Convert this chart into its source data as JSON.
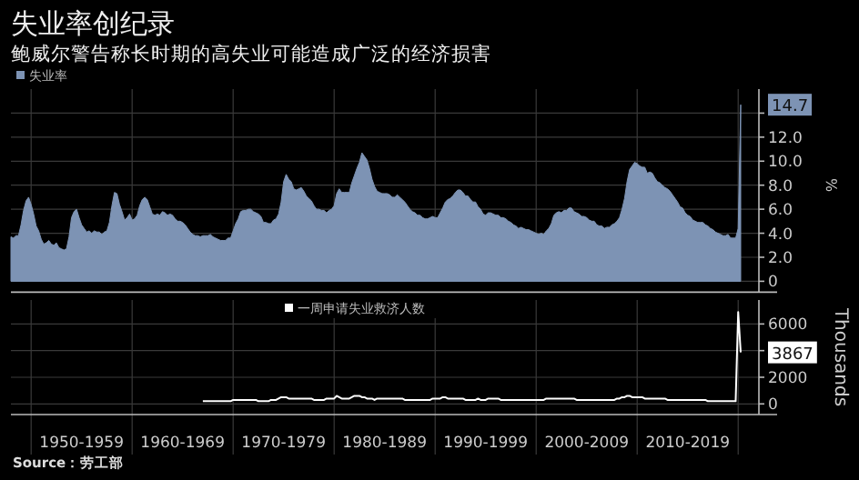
{
  "chart_data": [
    {
      "type": "area",
      "title": "失业率创纪录",
      "subtitle": "鲍威尔警告称长时期的高失业可能造成广泛的经济损害",
      "ylabel": "%",
      "legend": "top left",
      "grid": true,
      "tick_labels": "y",
      "ylim": [
        0,
        16
      ],
      "categories": [
        null,
        null,
        null,
        null,
        null,
        null,
        null,
        null,
        null,
        null,
        null,
        null,
        null,
        null,
        null,
        null,
        null,
        null,
        null,
        null,
        null,
        null,
        null,
        null,
        null,
        null,
        null,
        null,
        null,
        null,
        null,
        null,
        null,
        null,
        null,
        null,
        null,
        null,
        null,
        null,
        null,
        null,
        null,
        null,
        null,
        null,
        null,
        null,
        null,
        null,
        null,
        null,
        null,
        null,
        null,
        null,
        null,
        null,
        null,
        null,
        null,
        null,
        null,
        null,
        null,
        null,
        null,
        null,
        null,
        null,
        null,
        null,
        null,
        null,
        null,
        null,
        null,
        null,
        null,
        null,
        null,
        null,
        null,
        null,
        null,
        null,
        null,
        null,
        null,
        null,
        null,
        null,
        null,
        null,
        null,
        null,
        null,
        null,
        null,
        null,
        null,
        null,
        null,
        null,
        null,
        null,
        null,
        null,
        null,
        null,
        null,
        null,
        null,
        null,
        null,
        null,
        null,
        null,
        null,
        null,
        null,
        null,
        null,
        null,
        null,
        null,
        null,
        null,
        null,
        null,
        null,
        null,
        null,
        null,
        null,
        null,
        null,
        null,
        null,
        null,
        null,
        null,
        null,
        null,
        null,
        null,
        null,
        null,
        null,
        null,
        null,
        null,
        null,
        null,
        null,
        null,
        null,
        null,
        null,
        null,
        null,
        null,
        null,
        null,
        null,
        null,
        null,
        null,
        null,
        null,
        null,
        null,
        null,
        null,
        null,
        null,
        null,
        null,
        null,
        null,
        null,
        null,
        null,
        null,
        null,
        null,
        null,
        null,
        null,
        null,
        null,
        null,
        null,
        null,
        null,
        null,
        null,
        null,
        null,
        null,
        null,
        null,
        null,
        null,
        null,
        null,
        null,
        null,
        null,
        null,
        null,
        null,
        null,
        null,
        null,
        null,
        null,
        null,
        null,
        null,
        null,
        null,
        null,
        null,
        null,
        null,
        null,
        null,
        null,
        null,
        null,
        null,
        null,
        null,
        null,
        null,
        null,
        null,
        null,
        null,
        null,
        null,
        null,
        null,
        null,
        null,
        null,
        null,
        null,
        null,
        null,
        null,
        null,
        null,
        null,
        null,
        null,
        null,
        null,
        null,
        null,
        null,
        null,
        null,
        null,
        null,
        null,
        null,
        null,
        null,
        null,
        null,
        null,
        null,
        null,
        null,
        null,
        null,
        null,
        null,
        null,
        null,
        null,
        null,
        null,
        null,
        null,
        null,
        null,
        null
      ],
      "yticks": [
        0,
        {
          "value": 2,
          "label": "2.0"
        },
        {
          "value": 4,
          "label": "4.0"
        },
        {
          "value": 6,
          "label": "6.0"
        },
        {
          "value": 8,
          "label": "8.0"
        },
        {
          "value": 10,
          "label": "10.0"
        },
        {
          "value": 12,
          "label": "12.0"
        },
        {
          "value": 14,
          "label": null
        }
      ],
      "series": [
        {
          "name": "失业率",
          "color": "#7d93b4",
          "values": [
            3.7,
            3.6,
            3.8,
            3.8,
            4.7,
            5.9,
            6.7,
            7.0,
            6.4,
            5.6,
            4.6,
            4.2,
            3.5,
            3.1,
            3.2,
            3.4,
            3.1,
            3.0,
            3.2,
            2.8,
            2.7,
            2.6,
            2.7,
            3.7,
            5.3,
            5.8,
            6.0,
            5.3,
            4.7,
            4.4,
            4.1,
            4.2,
            4.0,
            4.2,
            4.1,
            4.1,
            3.9,
            4.1,
            4.2,
            4.9,
            6.3,
            7.4,
            7.3,
            6.4,
            5.8,
            5.1,
            5.3,
            5.6,
            5.1,
            5.2,
            5.5,
            6.3,
            6.8,
            7.0,
            6.8,
            6.2,
            5.6,
            5.5,
            5.6,
            5.5,
            5.8,
            5.7,
            5.5,
            5.6,
            5.5,
            5.2,
            5.0,
            5.0,
            4.9,
            4.7,
            4.4,
            4.1,
            3.9,
            3.8,
            3.8,
            3.7,
            3.8,
            3.8,
            3.8,
            3.9,
            3.7,
            3.6,
            3.5,
            3.4,
            3.4,
            3.4,
            3.6,
            3.6,
            4.2,
            4.8,
            5.2,
            5.8,
            5.9,
            5.9,
            6.0,
            6.0,
            5.8,
            5.7,
            5.6,
            5.4,
            4.9,
            4.9,
            4.8,
            4.8,
            5.1,
            5.2,
            5.6,
            6.6,
            8.3,
            8.9,
            8.5,
            8.3,
            7.7,
            7.6,
            7.7,
            7.8,
            7.5,
            7.1,
            6.9,
            6.7,
            6.3,
            6.0,
            6.0,
            5.9,
            5.9,
            5.7,
            5.9,
            6.0,
            6.3,
            7.3,
            7.7,
            7.4,
            7.4,
            7.4,
            7.4,
            8.2,
            8.8,
            9.4,
            9.9,
            10.7,
            10.4,
            10.1,
            9.4,
            8.5,
            7.9,
            7.5,
            7.4,
            7.3,
            7.3,
            7.3,
            7.2,
            7.0,
            7.0,
            7.2,
            7.0,
            6.8,
            6.6,
            6.3,
            6.0,
            5.8,
            5.7,
            5.5,
            5.5,
            5.3,
            5.2,
            5.2,
            5.3,
            5.4,
            5.3,
            5.3,
            5.7,
            6.1,
            6.6,
            6.8,
            6.9,
            7.1,
            7.4,
            7.6,
            7.6,
            7.4,
            7.1,
            7.1,
            6.8,
            6.6,
            6.6,
            6.2,
            6.0,
            5.6,
            5.5,
            5.7,
            5.7,
            5.6,
            5.5,
            5.5,
            5.3,
            5.3,
            5.2,
            5.0,
            4.9,
            4.7,
            4.6,
            4.4,
            4.5,
            4.4,
            4.3,
            4.3,
            4.2,
            4.1,
            4.0,
            3.9,
            4.0,
            3.9,
            4.2,
            4.4,
            4.8,
            5.5,
            5.7,
            5.8,
            5.7,
            5.9,
            5.9,
            6.1,
            6.1,
            5.8,
            5.7,
            5.6,
            5.4,
            5.4,
            5.3,
            5.1,
            5.0,
            5.0,
            4.7,
            4.6,
            4.6,
            4.4,
            4.5,
            4.5,
            4.7,
            4.8,
            5.0,
            5.3,
            6.0,
            6.9,
            8.3,
            9.3,
            9.6,
            9.9,
            9.8,
            9.6,
            9.5,
            9.5,
            9.0,
            9.1,
            9.0,
            8.6,
            8.3,
            8.2,
            8.0,
            7.8,
            7.7,
            7.5,
            7.2,
            6.9,
            6.6,
            6.2,
            6.1,
            5.7,
            5.5,
            5.4,
            5.1,
            5.0,
            4.9,
            4.9,
            4.9,
            4.7,
            4.6,
            4.4,
            4.3,
            4.1,
            4.0,
            3.9,
            3.8,
            3.8,
            3.9,
            3.6,
            3.6,
            3.6,
            4.4,
            14.7
          ],
          "value_labels": [
            null,
            null,
            null,
            null,
            null,
            null,
            null,
            null,
            null,
            null,
            null,
            null,
            null,
            null,
            null,
            null,
            null,
            null,
            null,
            null,
            null,
            null,
            null,
            null,
            null,
            null,
            null,
            null,
            null,
            null,
            null,
            null,
            null,
            null,
            null,
            null,
            null,
            null,
            null,
            null,
            null,
            null,
            null,
            null,
            null,
            null,
            null,
            null,
            null,
            null,
            null,
            null,
            null,
            null,
            null,
            null,
            null,
            null,
            null,
            null,
            null,
            null,
            null,
            null,
            null,
            null,
            null,
            null,
            null,
            null,
            null,
            null,
            null,
            null,
            null,
            null,
            null,
            null,
            null,
            null,
            null,
            null,
            null,
            null,
            null,
            null,
            null,
            null,
            null,
            null,
            null,
            null,
            null,
            null,
            null,
            null,
            null,
            null,
            null,
            null,
            null,
            null,
            null,
            null,
            null,
            null,
            null,
            null,
            null,
            null,
            null,
            null,
            null,
            null,
            null,
            null,
            null,
            null,
            null,
            null,
            null,
            null,
            null,
            null,
            null,
            null,
            null,
            null,
            null,
            null,
            null,
            null,
            null,
            null,
            null,
            null,
            null,
            null,
            null,
            null,
            null,
            null,
            null,
            null,
            null,
            null,
            null,
            null,
            null,
            null,
            null,
            null,
            null,
            null,
            null,
            null,
            null,
            null,
            null,
            null,
            null,
            null,
            null,
            null,
            null,
            null,
            null,
            null,
            null,
            null,
            null,
            null,
            null,
            null,
            null,
            null,
            null,
            null,
            null,
            null,
            null,
            null,
            null,
            null,
            null,
            null,
            null,
            null,
            null,
            null,
            null,
            null,
            null,
            null,
            null,
            null,
            null,
            null,
            null,
            null,
            null,
            null,
            null,
            null,
            null,
            null,
            null,
            null,
            null,
            null,
            null,
            null,
            null,
            null,
            null,
            null,
            null,
            null,
            null,
            null,
            null,
            null,
            null,
            null,
            null,
            null,
            null,
            null,
            null,
            null,
            null,
            null,
            null,
            null,
            null,
            null,
            null,
            null,
            null,
            null,
            null,
            null,
            null,
            null,
            null,
            null,
            null,
            null,
            null,
            null,
            null,
            null,
            null,
            null,
            null,
            null,
            null,
            null,
            null,
            null,
            null,
            null,
            null,
            null,
            null,
            null,
            null,
            null,
            null,
            null,
            null,
            null,
            null,
            null,
            null,
            null,
            null,
            null,
            null,
            null,
            null,
            null,
            null,
            null,
            null,
            null,
            null,
            null,
            null,
            "14.7"
          ]
        }
      ]
    },
    {
      "type": "line",
      "ylabel": "Thousands",
      "legend": "top",
      "grid": true,
      "ylim": [
        -800,
        7800
      ],
      "annotations": [
        "Source：劳工部"
      ],
      "categories": [
        null,
        null,
        null,
        null,
        null,
        null,
        null,
        null,
        null,
        null,
        null,
        null,
        null,
        null,
        null,
        null,
        null,
        null,
        null,
        null,
        null,
        null,
        null,
        null,
        null,
        null,
        null,
        null,
        "1950-1959",
        null,
        null,
        null,
        null,
        null,
        null,
        null,
        null,
        null,
        null,
        null,
        null,
        null,
        null,
        null,
        null,
        null,
        null,
        null,
        null,
        null,
        null,
        null,
        null,
        null,
        null,
        null,
        null,
        null,
        null,
        null,
        null,
        null,
        null,
        null,
        null,
        null,
        null,
        null,
        "1960-1969",
        null,
        null,
        null,
        null,
        null,
        null,
        null,
        null,
        null,
        null,
        null,
        null,
        null,
        null,
        null,
        null,
        null,
        null,
        null,
        null,
        null,
        null,
        null,
        null,
        null,
        null,
        null,
        null,
        null,
        null,
        null,
        null,
        null,
        null,
        null,
        null,
        null,
        null,
        null,
        "1970-1979",
        null,
        null,
        null,
        null,
        null,
        null,
        null,
        null,
        null,
        null,
        null,
        null,
        null,
        null,
        null,
        null,
        null,
        null,
        null,
        null,
        null,
        null,
        null,
        null,
        null,
        null,
        null,
        null,
        null,
        null,
        null,
        null,
        null,
        null,
        null,
        null,
        null,
        null,
        null,
        "1980-1989",
        null,
        null,
        null,
        null,
        null,
        null,
        null,
        null,
        null,
        null,
        null,
        null,
        null,
        null,
        null,
        null,
        null,
        null,
        null,
        null,
        null,
        null,
        null,
        null,
        null,
        null,
        null,
        null,
        null,
        null,
        null,
        null,
        null,
        null,
        null,
        null,
        null,
        null,
        null,
        "1990-1999",
        null,
        null,
        null,
        null,
        null,
        null,
        null,
        null,
        null,
        null,
        null,
        null,
        null,
        null,
        null,
        null,
        null,
        null,
        null,
        null,
        null,
        null,
        null,
        null,
        null,
        null,
        null,
        null,
        null,
        null,
        null,
        null,
        null,
        null,
        null,
        null,
        null,
        null,
        null,
        "2000-2009",
        null,
        null,
        null,
        null,
        null,
        null,
        null,
        null,
        null,
        null,
        null,
        null,
        null,
        null,
        null,
        null,
        null,
        null,
        null,
        null,
        null,
        null,
        null,
        null,
        null,
        null,
        null,
        null,
        null,
        null,
        null,
        null,
        null,
        null,
        null,
        null,
        null,
        null,
        null,
        "2010-2019",
        null,
        null,
        null,
        null,
        null,
        null,
        null,
        null,
        null,
        null,
        null,
        null,
        null,
        null,
        null,
        null,
        null,
        null,
        null,
        null,
        null
      ],
      "yticks": [
        0,
        2000,
        {
          "value": 4000,
          "label": null
        },
        6000
      ],
      "series": [
        {
          "name": "一周申请失业救济人数",
          "color": "#ffffff",
          "values": [
            null,
            null,
            null,
            null,
            null,
            null,
            null,
            null,
            null,
            null,
            null,
            null,
            null,
            null,
            null,
            null,
            null,
            null,
            null,
            null,
            null,
            null,
            null,
            null,
            null,
            null,
            null,
            null,
            null,
            null,
            null,
            null,
            null,
            null,
            null,
            null,
            null,
            null,
            null,
            null,
            null,
            null,
            null,
            null,
            null,
            null,
            null,
            null,
            null,
            null,
            null,
            null,
            null,
            null,
            null,
            null,
            null,
            null,
            null,
            null,
            null,
            null,
            null,
            null,
            null,
            null,
            null,
            null,
            null,
            null,
            null,
            null,
            null,
            null,
            null,
            null,
            200,
            200,
            200,
            200,
            200,
            200,
            200,
            200,
            200,
            200,
            200,
            200,
            300,
            300,
            300,
            300,
            300,
            300,
            300,
            300,
            300,
            300,
            200,
            200,
            200,
            200,
            200,
            300,
            300,
            300,
            400,
            500,
            500,
            500,
            400,
            400,
            400,
            400,
            400,
            400,
            400,
            400,
            400,
            400,
            300,
            300,
            300,
            300,
            300,
            400,
            400,
            400,
            400,
            600,
            500,
            400,
            400,
            400,
            400,
            500,
            600,
            600,
            600,
            500,
            500,
            400,
            400,
            400,
            300,
            400,
            400,
            400,
            400,
            400,
            400,
            400,
            400,
            400,
            400,
            400,
            300,
            300,
            300,
            300,
            300,
            300,
            300,
            300,
            300,
            300,
            300,
            400,
            400,
            400,
            400,
            500,
            500,
            400,
            400,
            400,
            400,
            400,
            400,
            400,
            300,
            300,
            300,
            300,
            300,
            400,
            300,
            300,
            300,
            400,
            400,
            400,
            400,
            400,
            300,
            300,
            300,
            300,
            300,
            300,
            300,
            300,
            300,
            300,
            300,
            300,
            300,
            300,
            300,
            300,
            300,
            300,
            400,
            400,
            400,
            400,
            400,
            400,
            400,
            400,
            400,
            400,
            400,
            400,
            300,
            300,
            300,
            300,
            300,
            300,
            300,
            300,
            300,
            300,
            300,
            300,
            300,
            300,
            300,
            300,
            400,
            400,
            500,
            500,
            600,
            600,
            500,
            500,
            500,
            500,
            500,
            400,
            400,
            400,
            400,
            400,
            400,
            400,
            400,
            400,
            300,
            300,
            300,
            300,
            300,
            300,
            300,
            300,
            300,
            300,
            300,
            300,
            300,
            300,
            300,
            300,
            200,
            200,
            200,
            200,
            200,
            200,
            200,
            200,
            200,
            200,
            200,
            200,
            6900,
            3867
          ],
          "value_labels": [
            null,
            null,
            null,
            null,
            null,
            null,
            null,
            null,
            null,
            null,
            null,
            null,
            null,
            null,
            null,
            null,
            null,
            null,
            null,
            null,
            null,
            null,
            null,
            null,
            null,
            null,
            null,
            null,
            null,
            null,
            null,
            null,
            null,
            null,
            null,
            null,
            null,
            null,
            null,
            null,
            null,
            null,
            null,
            null,
            null,
            null,
            null,
            null,
            null,
            null,
            null,
            null,
            null,
            null,
            null,
            null,
            null,
            null,
            null,
            null,
            null,
            null,
            null,
            null,
            null,
            null,
            null,
            null,
            null,
            null,
            null,
            null,
            null,
            null,
            null,
            null,
            null,
            null,
            null,
            null,
            null,
            null,
            null,
            null,
            null,
            null,
            null,
            null,
            null,
            null,
            null,
            null,
            null,
            null,
            null,
            null,
            null,
            null,
            null,
            null,
            null,
            null,
            null,
            null,
            null,
            null,
            null,
            null,
            null,
            null,
            null,
            null,
            null,
            null,
            null,
            null,
            null,
            null,
            null,
            null,
            null,
            null,
            null,
            null,
            null,
            null,
            null,
            null,
            null,
            null,
            null,
            null,
            null,
            null,
            null,
            null,
            null,
            null,
            null,
            null,
            null,
            null,
            null,
            null,
            null,
            null,
            null,
            null,
            null,
            null,
            null,
            null,
            null,
            null,
            null,
            null,
            null,
            null,
            null,
            null,
            null,
            null,
            null,
            null,
            null,
            null,
            null,
            null,
            null,
            null,
            null,
            null,
            null,
            null,
            null,
            null,
            null,
            null,
            null,
            null,
            null,
            null,
            null,
            null,
            null,
            null,
            null,
            null,
            null,
            null,
            null,
            null,
            null,
            null,
            null,
            null,
            null,
            null,
            null,
            null,
            null,
            null,
            null,
            null,
            null,
            null,
            null,
            null,
            null,
            null,
            null,
            null,
            null,
            null,
            null,
            null,
            null,
            null,
            null,
            null,
            null,
            null,
            null,
            null,
            null,
            null,
            null,
            null,
            null,
            null,
            null,
            null,
            null,
            null,
            null,
            null,
            null,
            null,
            null,
            null,
            null,
            null,
            null,
            null,
            null,
            null,
            null,
            null,
            null,
            null,
            null,
            null,
            null,
            null,
            null,
            null,
            null,
            null,
            null,
            null,
            null,
            null,
            null,
            null,
            null,
            null,
            null,
            null,
            null,
            null,
            null,
            null,
            null,
            null,
            null,
            null,
            null,
            null,
            null,
            null,
            null,
            null,
            null,
            null,
            null,
            null,
            null,
            null,
            null,
            "3867"
          ]
        }
      ]
    }
  ]
}
